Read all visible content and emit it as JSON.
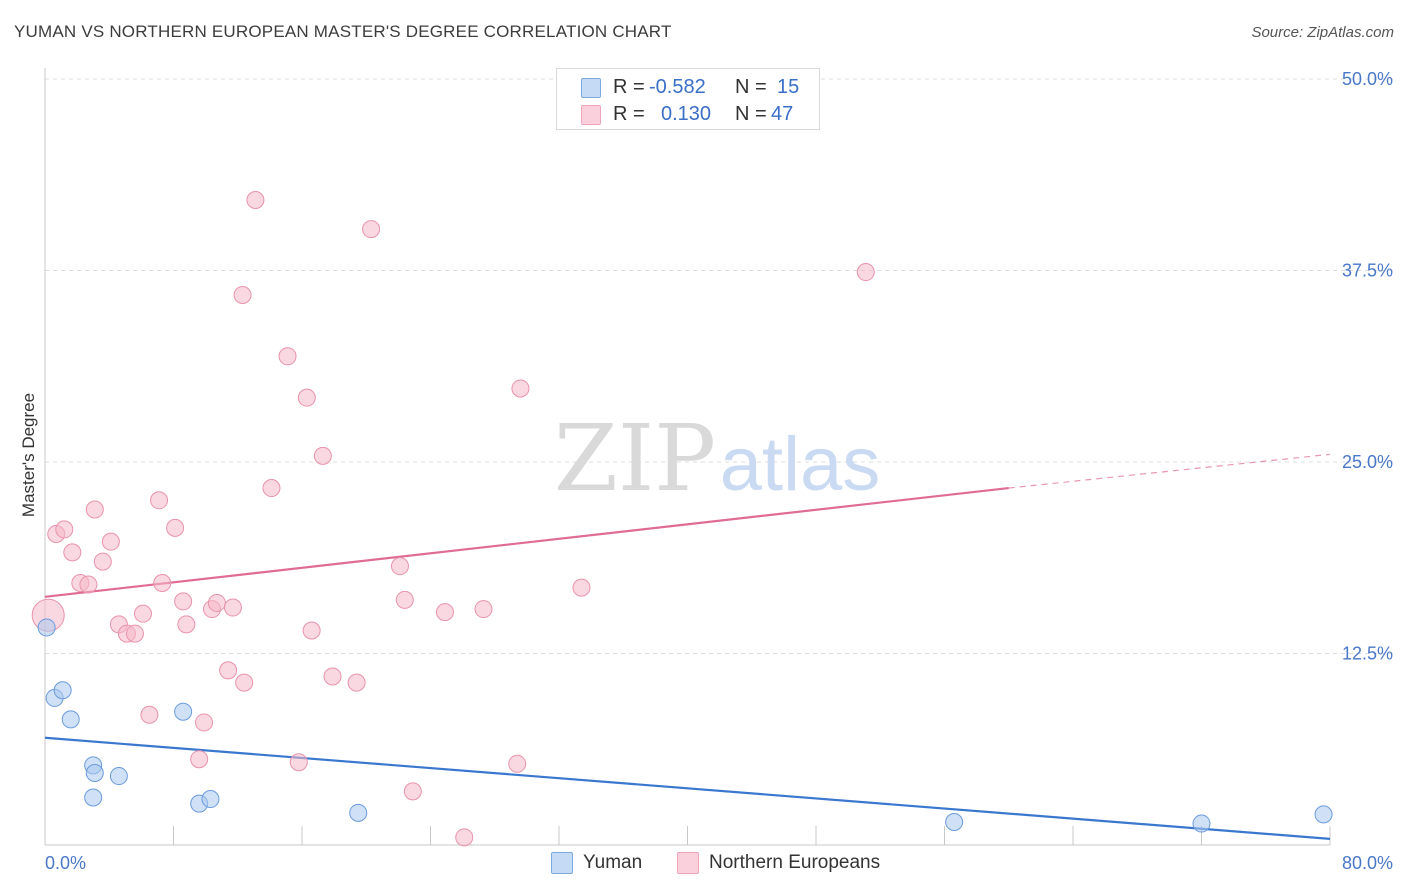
{
  "title": "YUMAN VS NORTHERN EUROPEAN MASTER'S DEGREE CORRELATION CHART",
  "source": "Source: ZipAtlas.com",
  "watermark": {
    "zip": "ZIP",
    "atlas": "atlas"
  },
  "legend": {
    "rows": [
      {
        "r_label": "R =",
        "r_value": "-0.582",
        "n_label": "N =",
        "n_value": "15",
        "color": "#a9c8f0"
      },
      {
        "r_label": "R =",
        "r_value": "0.130",
        "n_label": "N =",
        "n_value": "47",
        "color": "#f6b8c9"
      }
    ]
  },
  "bottom_legend": [
    {
      "label": "Yuman",
      "color": "#a9c8f0"
    },
    {
      "label": "Northern Europeans",
      "color": "#f6b8c9"
    }
  ],
  "chart_data": {
    "type": "scatter",
    "title": "YUMAN VS NORTHERN EUROPEAN MASTER'S DEGREE CORRELATION CHART",
    "xlabel": "",
    "ylabel": "Master's Degree",
    "xlim": [
      0,
      80
    ],
    "ylim": [
      0,
      50
    ],
    "x_tick_labels": [
      {
        "value": 0,
        "label": "0.0%"
      },
      {
        "value": 80,
        "label": "80.0%"
      }
    ],
    "y_ticks": [
      {
        "value": 12.5,
        "label": "12.5%"
      },
      {
        "value": 25,
        "label": "25.0%"
      },
      {
        "value": 37.5,
        "label": "37.5%"
      },
      {
        "value": 50,
        "label": "50.0%"
      }
    ],
    "grid": true,
    "series": [
      {
        "name": "Yuman",
        "color": "#a9c8f0",
        "stroke": "#6a9bdc",
        "trend_color": "#3a78cf",
        "points": [
          [
            0.1,
            14.2
          ],
          [
            0.6,
            9.6
          ],
          [
            1.1,
            10.1
          ],
          [
            1.6,
            8.2
          ],
          [
            3.0,
            3.1
          ],
          [
            3.0,
            5.2
          ],
          [
            3.1,
            4.7
          ],
          [
            4.6,
            4.5
          ],
          [
            8.6,
            8.7
          ],
          [
            9.6,
            2.7
          ],
          [
            10.3,
            3.0
          ],
          [
            19.5,
            2.1
          ],
          [
            56.6,
            1.5
          ],
          [
            72.0,
            1.4
          ],
          [
            79.6,
            2.0
          ]
        ],
        "trend": {
          "x": [
            0,
            80
          ],
          "y": [
            7.0,
            0.4
          ]
        }
      },
      {
        "name": "Northern Europeans",
        "color": "#f6b8c9",
        "stroke": "#e893ab",
        "trend_color": "#e06b93",
        "points": [
          [
            0.2,
            15.0
          ],
          [
            0.7,
            20.3
          ],
          [
            1.2,
            20.6
          ],
          [
            1.7,
            19.1
          ],
          [
            2.2,
            17.1
          ],
          [
            2.7,
            17.0
          ],
          [
            3.1,
            21.9
          ],
          [
            3.6,
            18.5
          ],
          [
            4.1,
            19.8
          ],
          [
            4.6,
            14.4
          ],
          [
            5.1,
            13.8
          ],
          [
            5.6,
            13.8
          ],
          [
            6.1,
            15.1
          ],
          [
            6.5,
            8.5
          ],
          [
            7.1,
            22.5
          ],
          [
            7.3,
            17.1
          ],
          [
            8.1,
            20.7
          ],
          [
            8.6,
            15.9
          ],
          [
            8.8,
            14.4
          ],
          [
            9.6,
            5.6
          ],
          [
            9.9,
            8.0
          ],
          [
            10.4,
            15.4
          ],
          [
            10.7,
            15.8
          ],
          [
            11.4,
            11.4
          ],
          [
            11.7,
            15.5
          ],
          [
            12.3,
            35.9
          ],
          [
            12.4,
            10.6
          ],
          [
            13.1,
            42.1
          ],
          [
            14.1,
            23.3
          ],
          [
            15.1,
            31.9
          ],
          [
            15.8,
            5.4
          ],
          [
            16.3,
            29.2
          ],
          [
            16.6,
            14.0
          ],
          [
            17.3,
            25.4
          ],
          [
            17.9,
            11.0
          ],
          [
            19.4,
            10.6
          ],
          [
            20.3,
            40.2
          ],
          [
            22.1,
            18.2
          ],
          [
            22.4,
            16.0
          ],
          [
            22.9,
            3.5
          ],
          [
            24.9,
            15.2
          ],
          [
            26.1,
            0.5
          ],
          [
            27.3,
            15.4
          ],
          [
            29.4,
            5.3
          ],
          [
            29.6,
            29.8
          ],
          [
            33.4,
            16.8
          ],
          [
            51.1,
            37.4
          ]
        ],
        "trend": {
          "x": [
            0,
            60
          ],
          "y": [
            16.2,
            23.3
          ]
        },
        "trend_dashed": {
          "x": [
            60,
            80
          ],
          "y": [
            23.3,
            25.5
          ]
        }
      }
    ]
  }
}
